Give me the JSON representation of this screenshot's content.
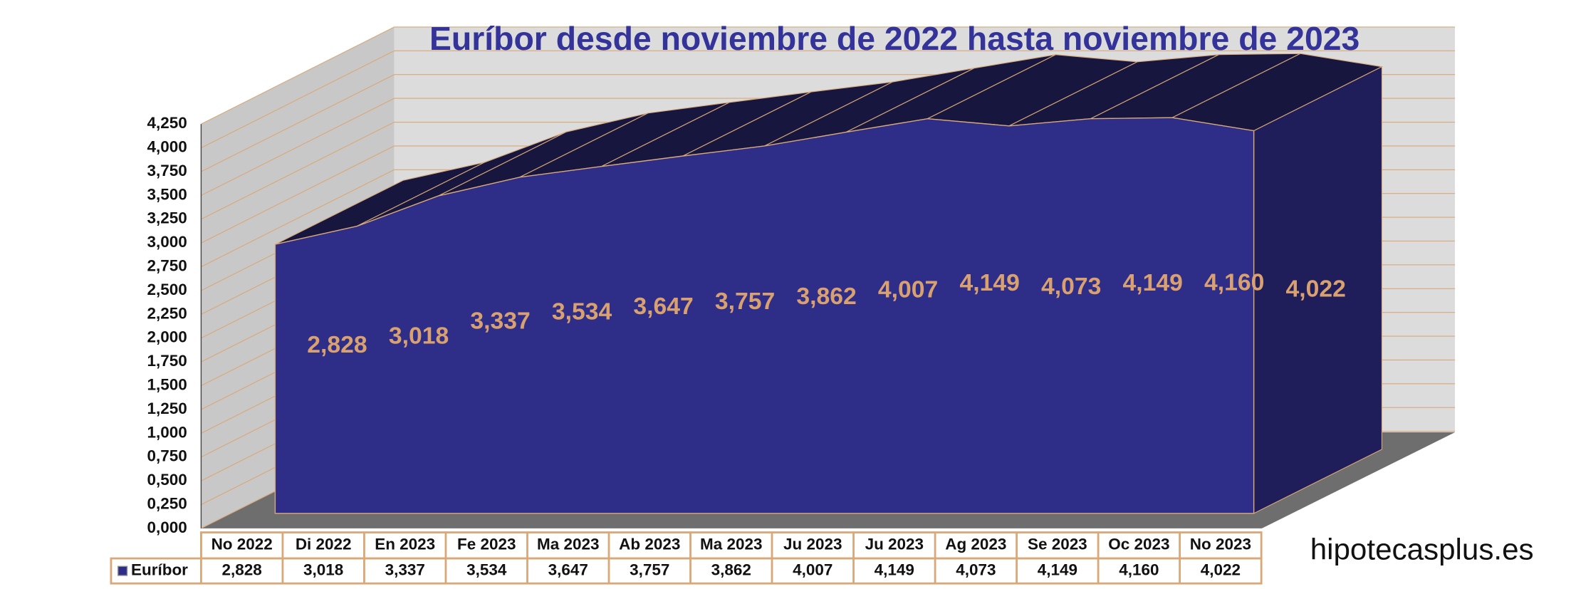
{
  "chart_data": {
    "type": "area3d",
    "title": "Euríbor desde noviembre de 2022 hasta noviembre de 2023",
    "categories": [
      "No 2022",
      "Di 2022",
      "En 2023",
      "Fe 2023",
      "Ma 2023",
      "Ab 2023",
      "Ma 2023",
      "Ju 2023",
      "Ju 2023",
      "Ag 2023",
      "Se 2023",
      "Oc 2023",
      "No 2023"
    ],
    "series": [
      {
        "name": "Euríbor",
        "color": "#2e2d88",
        "values": [
          2.828,
          3.018,
          3.337,
          3.534,
          3.647,
          3.757,
          3.862,
          4.007,
          4.149,
          4.073,
          4.149,
          4.16,
          4.022
        ],
        "value_labels": [
          "2,828",
          "3,018",
          "3,337",
          "3,534",
          "3,647",
          "3,757",
          "3,862",
          "4,007",
          "4,149",
          "4,073",
          "4,149",
          "4,160",
          "4,022"
        ]
      }
    ],
    "ylim": [
      0,
      4.25
    ],
    "yticks": [
      {
        "value": 0,
        "label": "0,000"
      },
      {
        "value": 0.25,
        "label": "0,250"
      },
      {
        "value": 0.5,
        "label": "0,500"
      },
      {
        "value": 0.75,
        "label": "0,750"
      },
      {
        "value": 1,
        "label": "1,000"
      },
      {
        "value": 1.25,
        "label": "1,250"
      },
      {
        "value": 1.5,
        "label": "1,500"
      },
      {
        "value": 1.75,
        "label": "1,750"
      },
      {
        "value": 2,
        "label": "2,000"
      },
      {
        "value": 2.25,
        "label": "2,250"
      },
      {
        "value": 2.5,
        "label": "2,500"
      },
      {
        "value": 2.75,
        "label": "2,750"
      },
      {
        "value": 3,
        "label": "3,000"
      },
      {
        "value": 3.25,
        "label": "3,250"
      },
      {
        "value": 3.5,
        "label": "3,500"
      },
      {
        "value": 3.75,
        "label": "3,750"
      },
      {
        "value": 4,
        "label": "4,000"
      },
      {
        "value": 4.25,
        "label": "4,250"
      }
    ],
    "grid": true,
    "data_table": true,
    "watermark": "hipotecasplus.es"
  }
}
